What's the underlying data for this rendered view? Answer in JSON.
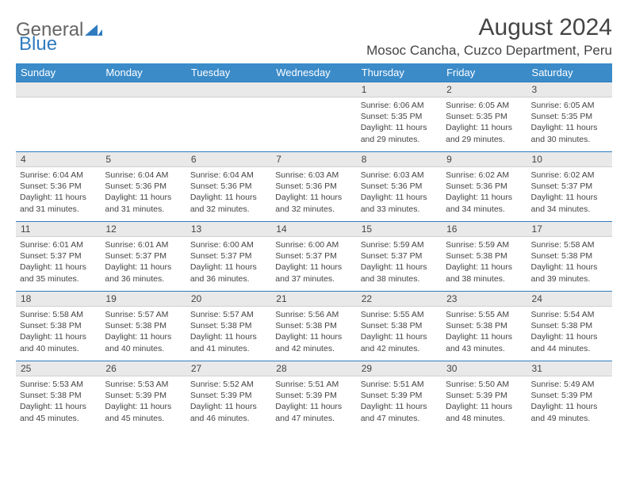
{
  "brand": {
    "part1": "General",
    "part2": "Blue"
  },
  "title": "August 2024",
  "location": "Mosoc Cancha, Cuzco Department, Peru",
  "colors": {
    "header_bg": "#3b8bc9",
    "border": "#2f7bbf",
    "daynum_bg": "#e9e9e9",
    "text": "#444444"
  },
  "weekdays": [
    "Sunday",
    "Monday",
    "Tuesday",
    "Wednesday",
    "Thursday",
    "Friday",
    "Saturday"
  ],
  "weeks": [
    [
      null,
      null,
      null,
      null,
      {
        "n": "1",
        "sr": "6:06 AM",
        "ss": "5:35 PM",
        "dl": "11 hours and 29 minutes."
      },
      {
        "n": "2",
        "sr": "6:05 AM",
        "ss": "5:35 PM",
        "dl": "11 hours and 29 minutes."
      },
      {
        "n": "3",
        "sr": "6:05 AM",
        "ss": "5:35 PM",
        "dl": "11 hours and 30 minutes."
      }
    ],
    [
      {
        "n": "4",
        "sr": "6:04 AM",
        "ss": "5:36 PM",
        "dl": "11 hours and 31 minutes."
      },
      {
        "n": "5",
        "sr": "6:04 AM",
        "ss": "5:36 PM",
        "dl": "11 hours and 31 minutes."
      },
      {
        "n": "6",
        "sr": "6:04 AM",
        "ss": "5:36 PM",
        "dl": "11 hours and 32 minutes."
      },
      {
        "n": "7",
        "sr": "6:03 AM",
        "ss": "5:36 PM",
        "dl": "11 hours and 32 minutes."
      },
      {
        "n": "8",
        "sr": "6:03 AM",
        "ss": "5:36 PM",
        "dl": "11 hours and 33 minutes."
      },
      {
        "n": "9",
        "sr": "6:02 AM",
        "ss": "5:36 PM",
        "dl": "11 hours and 34 minutes."
      },
      {
        "n": "10",
        "sr": "6:02 AM",
        "ss": "5:37 PM",
        "dl": "11 hours and 34 minutes."
      }
    ],
    [
      {
        "n": "11",
        "sr": "6:01 AM",
        "ss": "5:37 PM",
        "dl": "11 hours and 35 minutes."
      },
      {
        "n": "12",
        "sr": "6:01 AM",
        "ss": "5:37 PM",
        "dl": "11 hours and 36 minutes."
      },
      {
        "n": "13",
        "sr": "6:00 AM",
        "ss": "5:37 PM",
        "dl": "11 hours and 36 minutes."
      },
      {
        "n": "14",
        "sr": "6:00 AM",
        "ss": "5:37 PM",
        "dl": "11 hours and 37 minutes."
      },
      {
        "n": "15",
        "sr": "5:59 AM",
        "ss": "5:37 PM",
        "dl": "11 hours and 38 minutes."
      },
      {
        "n": "16",
        "sr": "5:59 AM",
        "ss": "5:38 PM",
        "dl": "11 hours and 38 minutes."
      },
      {
        "n": "17",
        "sr": "5:58 AM",
        "ss": "5:38 PM",
        "dl": "11 hours and 39 minutes."
      }
    ],
    [
      {
        "n": "18",
        "sr": "5:58 AM",
        "ss": "5:38 PM",
        "dl": "11 hours and 40 minutes."
      },
      {
        "n": "19",
        "sr": "5:57 AM",
        "ss": "5:38 PM",
        "dl": "11 hours and 40 minutes."
      },
      {
        "n": "20",
        "sr": "5:57 AM",
        "ss": "5:38 PM",
        "dl": "11 hours and 41 minutes."
      },
      {
        "n": "21",
        "sr": "5:56 AM",
        "ss": "5:38 PM",
        "dl": "11 hours and 42 minutes."
      },
      {
        "n": "22",
        "sr": "5:55 AM",
        "ss": "5:38 PM",
        "dl": "11 hours and 42 minutes."
      },
      {
        "n": "23",
        "sr": "5:55 AM",
        "ss": "5:38 PM",
        "dl": "11 hours and 43 minutes."
      },
      {
        "n": "24",
        "sr": "5:54 AM",
        "ss": "5:38 PM",
        "dl": "11 hours and 44 minutes."
      }
    ],
    [
      {
        "n": "25",
        "sr": "5:53 AM",
        "ss": "5:38 PM",
        "dl": "11 hours and 45 minutes."
      },
      {
        "n": "26",
        "sr": "5:53 AM",
        "ss": "5:39 PM",
        "dl": "11 hours and 45 minutes."
      },
      {
        "n": "27",
        "sr": "5:52 AM",
        "ss": "5:39 PM",
        "dl": "11 hours and 46 minutes."
      },
      {
        "n": "28",
        "sr": "5:51 AM",
        "ss": "5:39 PM",
        "dl": "11 hours and 47 minutes."
      },
      {
        "n": "29",
        "sr": "5:51 AM",
        "ss": "5:39 PM",
        "dl": "11 hours and 47 minutes."
      },
      {
        "n": "30",
        "sr": "5:50 AM",
        "ss": "5:39 PM",
        "dl": "11 hours and 48 minutes."
      },
      {
        "n": "31",
        "sr": "5:49 AM",
        "ss": "5:39 PM",
        "dl": "11 hours and 49 minutes."
      }
    ]
  ],
  "labels": {
    "sunrise": "Sunrise:",
    "sunset": "Sunset:",
    "daylight": "Daylight:"
  }
}
